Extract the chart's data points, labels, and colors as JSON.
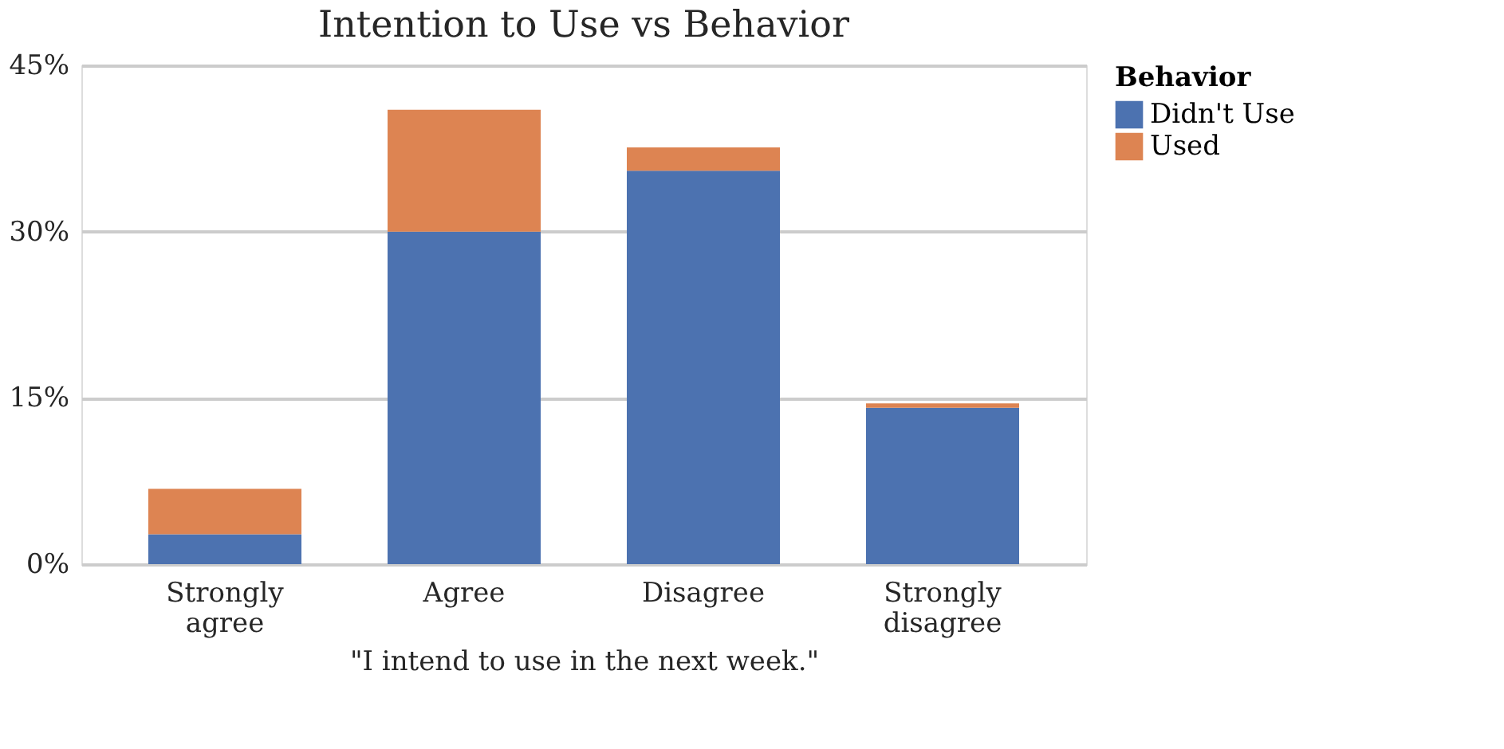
{
  "chart_data": {
    "type": "bar",
    "title": "Intention to Use vs Behavior",
    "xlabel": "\"I intend to use in the next week.\"",
    "legend_title": "Behavior",
    "categories": [
      "Strongly agree",
      "Agree",
      "Disagree",
      "Strongly disagree"
    ],
    "series": [
      {
        "name": "Didn't Use",
        "color": "#4c72b0",
        "values": [
          2.7,
          30.0,
          35.5,
          14.1
        ]
      },
      {
        "name": "Used",
        "color": "#dd8452",
        "values": [
          4.1,
          11.0,
          2.1,
          0.4
        ]
      }
    ],
    "stacked": true,
    "ylim": [
      0,
      45
    ],
    "yticks": [
      {
        "value": 0,
        "label": "0%"
      },
      {
        "value": 15,
        "label": "15%"
      },
      {
        "value": 30,
        "label": "30%"
      },
      {
        "value": 45,
        "label": "45%"
      }
    ],
    "grid": "y",
    "legend": "top right"
  }
}
